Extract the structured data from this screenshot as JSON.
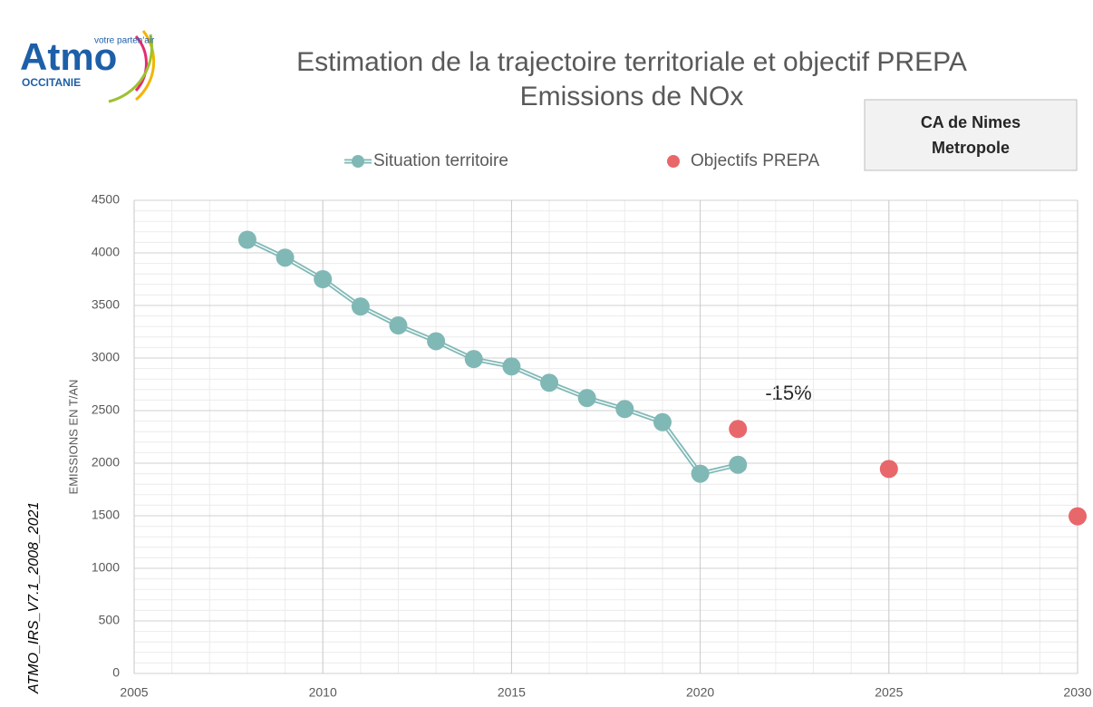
{
  "logo": {
    "name": "Atmo",
    "tagline": "votre parten'air",
    "region": "OCCITANIE"
  },
  "badge": {
    "lines": [
      "CA de Nimes",
      "Metropole"
    ]
  },
  "watermark": "ATMO_IRS_V7.1_2008_2021",
  "chart_data": {
    "type": "line",
    "title": "Estimation de la trajectoire territoriale et objectif PREPA",
    "subtitle": "Emissions de NOx",
    "y_label": "EMISSIONS  EN T/AN",
    "annotation": "-15%",
    "xlim": [
      2005,
      2030
    ],
    "xticks": [
      2005,
      2010,
      2015,
      2020,
      2025,
      2030
    ],
    "ylim": [
      0,
      4500
    ],
    "yticks": [
      0,
      500,
      1000,
      1500,
      2000,
      2500,
      3000,
      3500,
      4000,
      4500
    ],
    "grid": true,
    "series": [
      {
        "name": "Situation territoire",
        "color": "#80b8b6",
        "style": "line",
        "x": [
          2008,
          2009,
          2010,
          2011,
          2012,
          2013,
          2014,
          2015,
          2016,
          2017,
          2018,
          2019,
          2020,
          2021
        ],
        "values": [
          4125,
          3955,
          3750,
          3490,
          3310,
          3160,
          2990,
          2920,
          2765,
          2620,
          2515,
          2390,
          1900,
          1985
        ]
      },
      {
        "name": "Objectifs PREPA",
        "color": "#e8676b",
        "style": "scatter",
        "x": [
          2021,
          2025,
          2030
        ],
        "values": [
          2325,
          1945,
          1495
        ]
      }
    ]
  }
}
